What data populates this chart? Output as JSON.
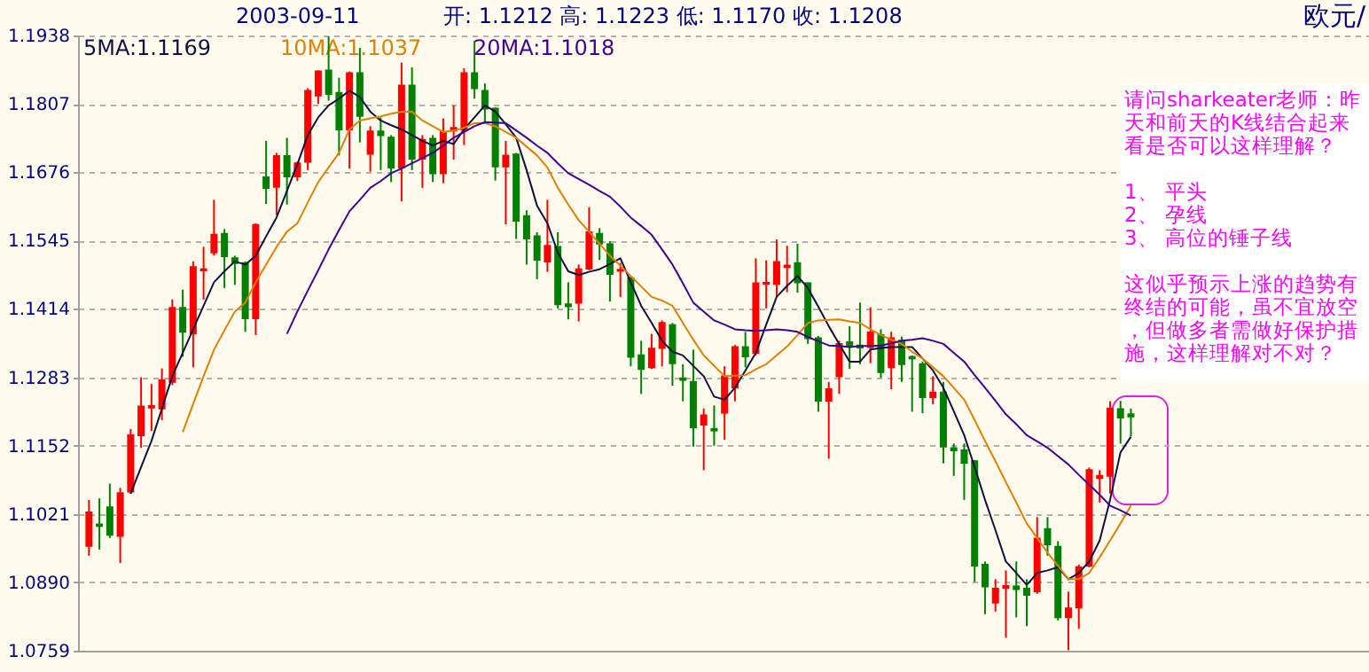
{
  "chart_data": {
    "type": "candlestick",
    "annotations": [
      "2003-09-11",
      "开: 1.1212 高: 1.1223 低: 1.1170 收: 1.1208",
      "欧元/",
      "请问sharkeater老师：昨天和前天的K线结合起来看是否可以这样理解？",
      "1、 平头",
      "2、 孕线",
      "3、 高位的锤子线",
      "这似乎预示上涨的趋势有终结的可能，虽不宜放空，但做多者需做好保护措施，这样理解对不对？"
    ],
    "categories": [
      null,
      null,
      null,
      null,
      null,
      null,
      null,
      null,
      null,
      null,
      null,
      null,
      null,
      null,
      null,
      null,
      null,
      null,
      null,
      null,
      null,
      null,
      null,
      null,
      null,
      null,
      null,
      null,
      null,
      null,
      null,
      null,
      null,
      null,
      null,
      null,
      null,
      null,
      null,
      null,
      null,
      null,
      null,
      null,
      null,
      null,
      null,
      null,
      null,
      null,
      null,
      null,
      null,
      null,
      null,
      null,
      null,
      null,
      null,
      null,
      null,
      null,
      null,
      null,
      null,
      null,
      null,
      null,
      null,
      null,
      null,
      null,
      null,
      null,
      null,
      null,
      null,
      null,
      null,
      null,
      null,
      null,
      null,
      null,
      null,
      null,
      null,
      null,
      null,
      null,
      null,
      null,
      null,
      null,
      null,
      null,
      null,
      null,
      null,
      null,
      null
    ],
    "ohlc": [
      [
        1.096,
        1.1048,
        1.0941,
        1.1024
      ],
      [
        1.1001,
        1.1051,
        1.0953,
        1.0998
      ],
      [
        1.1034,
        1.1079,
        1.0975,
        1.0981
      ],
      [
        1.0979,
        1.1071,
        1.0927,
        1.1061
      ],
      [
        1.1064,
        1.1184,
        1.106,
        1.1172
      ],
      [
        1.1172,
        1.1283,
        1.1148,
        1.1227
      ],
      [
        1.1225,
        1.127,
        1.118,
        1.1228
      ],
      [
        1.1223,
        1.13,
        1.1201,
        1.1277
      ],
      [
        1.1274,
        1.1432,
        1.1268,
        1.1416
      ],
      [
        1.1416,
        1.1451,
        1.1322,
        1.137
      ],
      [
        1.1367,
        1.1505,
        1.1302,
        1.1494
      ],
      [
        1.1488,
        1.1533,
        1.1432,
        1.149
      ],
      [
        1.1522,
        1.1623,
        1.1516,
        1.1556
      ],
      [
        1.1558,
        1.1567,
        1.1454,
        1.1515
      ],
      [
        1.1511,
        1.1516,
        1.146,
        1.1502
      ],
      [
        1.1502,
        1.1505,
        1.137,
        1.1396
      ],
      [
        1.1396,
        1.1578,
        1.1364,
        1.1575
      ],
      [
        1.1666,
        1.1736,
        1.1615,
        1.1646
      ],
      [
        1.1648,
        1.1713,
        1.1594,
        1.1707
      ],
      [
        1.1707,
        1.1742,
        1.1614,
        1.1668
      ],
      [
        1.1668,
        1.1696,
        1.1659,
        1.1693
      ],
      [
        1.1696,
        1.1837,
        1.168,
        1.1832
      ],
      [
        1.1823,
        1.1871,
        1.1807,
        1.1869
      ],
      [
        1.1871,
        1.1936,
        1.1813,
        1.1826
      ],
      [
        1.1828,
        1.1857,
        1.1708,
        1.1758
      ],
      [
        1.1758,
        1.1869,
        1.1683,
        1.1866
      ],
      [
        1.1866,
        1.1914,
        1.1733,
        1.1784
      ],
      [
        1.1711,
        1.1764,
        1.1677,
        1.1754
      ],
      [
        1.1754,
        1.1781,
        1.168,
        1.1747
      ],
      [
        1.1742,
        1.1747,
        1.1657,
        1.1685
      ],
      [
        1.1685,
        1.1886,
        1.162,
        1.1842
      ],
      [
        1.1842,
        1.1877,
        1.168,
        1.1702
      ],
      [
        1.1702,
        1.1747,
        1.1646,
        1.1738
      ],
      [
        1.174,
        1.1747,
        1.1657,
        1.1674
      ],
      [
        1.1674,
        1.1779,
        1.1655,
        1.1753
      ],
      [
        1.1756,
        1.1804,
        1.17,
        1.1761
      ],
      [
        1.1758,
        1.1875,
        1.1728,
        1.1866
      ],
      [
        1.1866,
        1.1928,
        1.1817,
        1.1837
      ],
      [
        1.1832,
        1.1846,
        1.1773,
        1.1798
      ],
      [
        1.1798,
        1.18,
        1.166,
        1.1687
      ],
      [
        1.1687,
        1.1736,
        1.1576,
        1.1708
      ],
      [
        1.171,
        1.1713,
        1.1548,
        1.1583
      ],
      [
        1.1592,
        1.1603,
        1.1499,
        1.1549
      ],
      [
        1.1553,
        1.1561,
        1.1471,
        1.1508
      ],
      [
        1.1505,
        1.1623,
        1.1485,
        1.1535
      ],
      [
        1.1533,
        1.1561,
        1.1415,
        1.1423
      ],
      [
        1.1423,
        1.1465,
        1.1394,
        1.1419
      ],
      [
        1.1426,
        1.1499,
        1.139,
        1.149
      ],
      [
        1.1491,
        1.1609,
        1.1488,
        1.1561
      ],
      [
        1.1558,
        1.1569,
        1.1508,
        1.1539
      ],
      [
        1.1538,
        1.1544,
        1.1428,
        1.1481
      ],
      [
        1.1487,
        1.1502,
        1.1437,
        1.1489
      ],
      [
        1.1473,
        1.1477,
        1.1304,
        1.1322
      ],
      [
        1.1325,
        1.1353,
        1.1251,
        1.1299
      ],
      [
        1.1302,
        1.1366,
        1.1299,
        1.1338
      ],
      [
        1.1339,
        1.1392,
        1.1304,
        1.1387
      ],
      [
        1.1383,
        1.1387,
        1.1267,
        1.131
      ],
      [
        1.1281,
        1.1308,
        1.1237,
        1.1278
      ],
      [
        1.1274,
        1.1336,
        1.115,
        1.1187
      ],
      [
        1.1192,
        1.1223,
        1.1105,
        1.121
      ],
      [
        1.1184,
        1.1229,
        1.1152,
        1.1181
      ],
      [
        1.1215,
        1.1304,
        1.1163,
        1.1285
      ],
      [
        1.1263,
        1.1345,
        1.1237,
        1.1341
      ],
      [
        1.1341,
        1.137,
        1.1302,
        1.1323
      ],
      [
        1.133,
        1.1511,
        1.1325,
        1.1463
      ],
      [
        1.1462,
        1.1507,
        1.1415,
        1.1464
      ],
      [
        1.1462,
        1.1547,
        1.1437,
        1.1504
      ],
      [
        1.1494,
        1.1535,
        1.1446,
        1.1497
      ],
      [
        1.1502,
        1.1539,
        1.1445,
        1.1465
      ],
      [
        1.1463,
        1.1465,
        1.1347,
        1.1358
      ],
      [
        1.1358,
        1.1362,
        1.1217,
        1.1238
      ],
      [
        1.1238,
        1.1274,
        1.1127,
        1.126
      ],
      [
        1.1285,
        1.1353,
        1.1251,
        1.1347
      ],
      [
        1.135,
        1.1381,
        1.1299,
        1.1344
      ],
      [
        1.1344,
        1.1426,
        1.1308,
        1.134
      ],
      [
        1.1341,
        1.1417,
        1.131,
        1.1369
      ],
      [
        1.1364,
        1.1375,
        1.1282,
        1.1293
      ],
      [
        1.1302,
        1.137,
        1.126,
        1.1358
      ],
      [
        1.1353,
        1.1361,
        1.1274,
        1.1308
      ],
      [
        1.1322,
        1.1325,
        1.1217,
        1.1319
      ],
      [
        1.1308,
        1.1313,
        1.1214,
        1.1245
      ],
      [
        1.1245,
        1.1285,
        1.1231,
        1.1254
      ],
      [
        1.1254,
        1.1274,
        1.1118,
        1.115
      ],
      [
        1.1147,
        1.1156,
        1.1094,
        1.1143
      ],
      [
        1.1143,
        1.1156,
        1.1048,
        1.1119
      ],
      [
        1.1122,
        1.1124,
        1.0891,
        1.0922
      ],
      [
        1.0924,
        1.093,
        1.0829,
        1.0882
      ],
      [
        1.0851,
        1.0896,
        1.0834,
        1.0878
      ],
      [
        1.0879,
        1.0913,
        1.0784,
        1.0883
      ],
      [
        1.0882,
        1.093,
        1.0823,
        1.0877
      ],
      [
        1.0878,
        1.0896,
        1.0806,
        1.0866
      ],
      [
        1.0873,
        1.1015,
        1.0868,
        1.0974
      ],
      [
        1.0992,
        1.1015,
        1.0941,
        1.0963
      ],
      [
        1.0958,
        1.0969,
        1.0817,
        1.0823
      ],
      [
        1.0823,
        1.0872,
        1.076,
        1.084
      ],
      [
        1.0842,
        1.0924,
        1.0801,
        1.0919
      ],
      [
        1.0922,
        1.111,
        1.0919,
        1.1105
      ],
      [
        1.109,
        1.1105,
        1.1043,
        1.1094
      ],
      [
        1.1094,
        1.1237,
        1.106,
        1.1223
      ],
      [
        1.1222,
        1.1238,
        1.1156,
        1.1206
      ],
      [
        1.1212,
        1.1223,
        1.117,
        1.1208
      ]
    ],
    "colors": [
      "#ff0000",
      "#008000",
      "#008000",
      "#ff0000",
      "#ff0000",
      "#ff0000",
      "#ff0000",
      "#ff0000",
      "#ff0000",
      "#008000",
      "#ff0000",
      "#ff0000",
      "#ff0000",
      "#008000",
      "#008000",
      "#008000",
      "#ff0000",
      "#008000",
      "#ff0000",
      "#008000",
      "#ff0000",
      "#ff0000",
      "#ff0000",
      "#008000",
      "#008000",
      "#ff0000",
      "#008000",
      "#ff0000",
      "#008000",
      "#008000",
      "#ff0000",
      "#008000",
      "#ff0000",
      "#008000",
      "#ff0000",
      "#ff0000",
      "#ff0000",
      "#008000",
      "#008000",
      "#008000",
      "#ff0000",
      "#008000",
      "#008000",
      "#008000",
      "#ff0000",
      "#008000",
      "#008000",
      "#ff0000",
      "#ff0000",
      "#008000",
      "#008000",
      "#ff0000",
      "#008000",
      "#008000",
      "#ff0000",
      "#ff0000",
      "#008000",
      "#008000",
      "#008000",
      "#ff0000",
      "#008000",
      "#ff0000",
      "#ff0000",
      "#008000",
      "#ff0000",
      "#ff0000",
      "#ff0000",
      "#ff0000",
      "#008000",
      "#008000",
      "#008000",
      "#ff0000",
      "#ff0000",
      "#008000",
      "#008000",
      "#ff0000",
      "#008000",
      "#ff0000",
      "#008000",
      "#008000",
      "#008000",
      "#ff0000",
      "#008000",
      "#008000",
      "#008000",
      "#008000",
      "#008000",
      "#ff0000",
      "#ff0000",
      "#008000",
      "#008000",
      "#ff0000",
      "#008000",
      "#008000",
      "#ff0000",
      "#ff0000",
      "#ff0000",
      "#ff0000",
      "#ff0000",
      "#008000",
      "#008000"
    ],
    "series": [
      {
        "name": "5MA:1.1169",
        "type": "line",
        "color": "#101040",
        "values": [
          null,
          null,
          null,
          null,
          1.106,
          1.1111,
          1.1161,
          1.1223,
          1.1285,
          1.133,
          1.1375,
          1.142,
          1.1465,
          1.1486,
          1.1505,
          1.1499,
          1.1516,
          1.1553,
          1.1589,
          1.164,
          1.1691,
          1.1747,
          1.1781,
          1.1804,
          1.1817,
          1.1832,
          1.182,
          1.1792,
          1.1775,
          1.1766,
          1.1758,
          1.1747,
          1.1736,
          1.1727,
          1.1736,
          1.173,
          1.1758,
          1.1781,
          1.1804,
          1.1792,
          1.1768,
          1.1742,
          1.168,
          1.1612,
          1.1578,
          1.1522,
          1.1486,
          1.1479,
          1.1485,
          1.149,
          1.15,
          1.1511,
          1.1465,
          1.142,
          1.1387,
          1.1353,
          1.1332,
          1.1325,
          1.1305,
          1.1285,
          1.1246,
          1.124,
          1.1263,
          1.1296,
          1.133,
          1.1384,
          1.1437,
          1.1458,
          1.1477,
          1.1454,
          1.1418,
          1.1381,
          1.1347,
          1.1313,
          1.1313,
          1.1336,
          1.1339,
          1.1341,
          1.1341,
          1.1341,
          1.1319,
          1.1296,
          1.1263,
          1.1218,
          1.1172,
          1.1111,
          1.1048,
          1.099,
          1.093,
          1.0908,
          1.0885,
          1.0908,
          1.0913,
          1.0919,
          1.0896,
          1.0908,
          1.093,
          1.097,
          1.1048,
          1.1139,
          1.1169
        ]
      },
      {
        "name": "10MA:1.1037",
        "type": "line",
        "color": "#e08000",
        "values": [
          null,
          null,
          null,
          null,
          null,
          null,
          null,
          null,
          null,
          1.1178,
          1.1232,
          1.1285,
          1.1336,
          1.1373,
          1.1409,
          1.1426,
          1.1465,
          1.1499,
          1.1533,
          1.1562,
          1.1578,
          1.1618,
          1.1657,
          1.1685,
          1.1713,
          1.1758,
          1.1775,
          1.1779,
          1.1783,
          1.1788,
          1.1792,
          1.1792,
          1.1775,
          1.1764,
          1.1753,
          1.1756,
          1.1761,
          1.177,
          1.177,
          1.1764,
          1.1753,
          1.1742,
          1.1725,
          1.1708,
          1.1685,
          1.1646,
          1.1614,
          1.1584,
          1.1562,
          1.1539,
          1.1516,
          1.1497,
          1.1477,
          1.1457,
          1.1437,
          1.143,
          1.142,
          1.1387,
          1.1355,
          1.1325,
          1.1305,
          1.1285,
          1.1286,
          1.1287,
          1.1298,
          1.1308,
          1.1325,
          1.1342,
          1.1364,
          1.1387,
          1.1392,
          1.1393,
          1.1394,
          1.139,
          1.1387,
          1.1375,
          1.1364,
          1.1355,
          1.1347,
          1.1332,
          1.1319,
          1.1302,
          1.1285,
          1.1263,
          1.124,
          1.1201,
          1.1161,
          1.1122,
          1.1082,
          1.1043,
          1.1003,
          1.0975,
          1.0947,
          1.0922,
          1.0896,
          1.0896,
          1.0908,
          1.0938,
          1.097,
          1.1003,
          1.1037
        ]
      },
      {
        "name": "20MA:1.1018",
        "type": "line",
        "color": "#400090",
        "values": [
          null,
          null,
          null,
          null,
          null,
          null,
          null,
          null,
          null,
          null,
          null,
          null,
          null,
          null,
          null,
          null,
          null,
          null,
          null,
          1.1366,
          1.1409,
          1.1449,
          1.1488,
          1.1528,
          1.1565,
          1.1601,
          1.1623,
          1.1646,
          1.1659,
          1.1674,
          1.1683,
          1.1693,
          1.1703,
          1.1713,
          1.1727,
          1.1742,
          1.1753,
          1.1764,
          1.1772,
          1.1771,
          1.177,
          1.1756,
          1.1742,
          1.1727,
          1.1713,
          1.1693,
          1.1674,
          1.1663,
          1.1652,
          1.164,
          1.1629,
          1.161,
          1.1589,
          1.1573,
          1.1556,
          1.1528,
          1.1499,
          1.1463,
          1.1426,
          1.1409,
          1.1392,
          1.1384,
          1.1375,
          1.1373,
          1.1372,
          1.1373,
          1.1375,
          1.1373,
          1.137,
          1.136,
          1.1352,
          1.1344,
          1.1343,
          1.1341,
          1.1343,
          1.1343,
          1.1344,
          1.1348,
          1.1353,
          1.1355,
          1.1358,
          1.1353,
          1.1347,
          1.133,
          1.1313,
          1.1287,
          1.1263,
          1.1238,
          1.1212,
          1.1193,
          1.1172,
          1.116,
          1.1148,
          1.1132,
          1.1116,
          1.1096,
          1.1077,
          1.1058,
          1.1037,
          1.1028,
          1.1018
        ]
      }
    ],
    "ylim": [
      1.0759,
      1.1938
    ],
    "yticks": [
      1.0759,
      {
        "value": 1.089,
        "label": "1.0890"
      },
      1.1021,
      1.1152,
      1.1283,
      1.1414,
      1.1545,
      1.1676,
      1.1807,
      1.1938
    ],
    "grid": "y",
    "tick_labels": "y"
  }
}
